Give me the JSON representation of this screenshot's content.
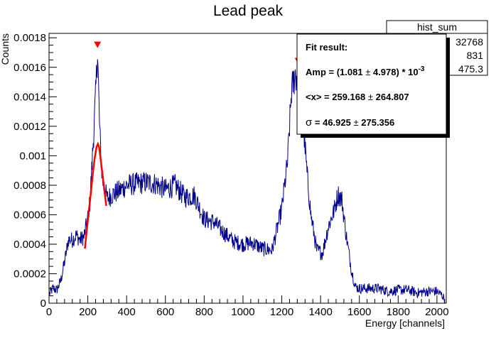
{
  "chart_data": {
    "type": "line",
    "title": "Lead peak",
    "xlabel": "Energy [channels]",
    "ylabel": "Counts",
    "xlim": [
      0,
      2048
    ],
    "ylim": [
      0,
      0.00183
    ],
    "x_ticks": [
      0,
      200,
      400,
      600,
      800,
      1000,
      1200,
      1400,
      1600,
      1800,
      2000
    ],
    "x_tick_labels": [
      "0",
      "200",
      "400",
      "600",
      "800",
      "1000",
      "1200",
      "1400",
      "1600",
      "1800",
      "2000"
    ],
    "y_ticks": [
      0,
      0.0002,
      0.0004,
      0.0006,
      0.0008,
      0.001,
      0.0012,
      0.0014,
      0.0016,
      0.0018
    ],
    "y_tick_labels": [
      "0",
      "0.0002",
      "0.0004",
      "0.0006",
      "0.0008",
      "0.001",
      "0.0012",
      "0.0014",
      "0.0016",
      "0.0018"
    ],
    "grid": false,
    "colors": {
      "histogram": "#00008b",
      "fit": "#ff0000",
      "marker": "#ff0000"
    },
    "series": [
      {
        "role": "histogram",
        "x": [
          0,
          20,
          40,
          60,
          80,
          100,
          120,
          140,
          160,
          180,
          200,
          210,
          220,
          230,
          240,
          250,
          260,
          270,
          280,
          300,
          330,
          360,
          400,
          450,
          500,
          550,
          600,
          650,
          700,
          750,
          800,
          850,
          900,
          950,
          1000,
          1050,
          1100,
          1150,
          1200,
          1230,
          1250,
          1270,
          1285,
          1300,
          1315,
          1330,
          1350,
          1380,
          1410,
          1440,
          1470,
          1490,
          1510,
          1530,
          1560,
          1580,
          1600,
          1650,
          1700,
          1750,
          1800,
          1850,
          1900,
          1950,
          2000,
          2030,
          2048
        ],
        "values": [
          6e-05,
          0.0001,
          9e-05,
          0.00015,
          0.00028,
          0.00043,
          0.00043,
          0.00046,
          0.00043,
          0.00045,
          0.00058,
          0.00068,
          0.0009,
          0.00115,
          0.0014,
          0.00172,
          0.00122,
          0.00092,
          0.0008,
          0.00071,
          0.00074,
          0.00076,
          0.0008,
          0.00081,
          0.00082,
          0.00081,
          0.00077,
          0.0008,
          0.00072,
          0.00073,
          0.00057,
          0.00055,
          0.00048,
          0.00042,
          0.0004,
          0.00041,
          0.00037,
          0.00036,
          0.00064,
          0.00096,
          0.00144,
          0.00156,
          0.0015,
          0.00134,
          0.00115,
          0.00088,
          0.0006,
          0.00036,
          0.00034,
          0.00052,
          0.00063,
          0.00074,
          0.0007,
          0.00048,
          0.00022,
          0.00011,
          0.0001,
          0.0001,
          0.0001,
          8e-05,
          9e-05,
          9e-05,
          7e-05,
          8e-05,
          8e-05,
          5e-05,
          0
        ]
      },
      {
        "role": "fit",
        "x": [
          185,
          195,
          205,
          215,
          225,
          235,
          245,
          252,
          258,
          265,
          275,
          285,
          295
        ],
        "values": [
          0.00037,
          0.0005,
          0.00062,
          0.00074,
          0.00087,
          0.00098,
          0.00106,
          0.00108,
          0.00106,
          0.00099,
          0.00088,
          0.00077,
          0.00066
        ]
      }
    ],
    "peak_markers": [
      {
        "x": 250,
        "y": 0.00175
      },
      {
        "x": 1285,
        "y": 0.00164
      }
    ]
  },
  "stats_box": {
    "title": "hist_sum",
    "values": [
      "32768",
      "831",
      "475.3"
    ]
  },
  "fit_box": {
    "heading": "Fit result:",
    "amp_text": "Amp = (1.081",
    "amp_err": "4.978) * 10",
    "amp_exp": "-3",
    "mean_text": "<x> = 259.168",
    "mean_err": "264.807",
    "sigma_text": "= 46.925",
    "sigma_err": "275.356",
    "pm": "±",
    "sigma_symbol": "σ"
  }
}
